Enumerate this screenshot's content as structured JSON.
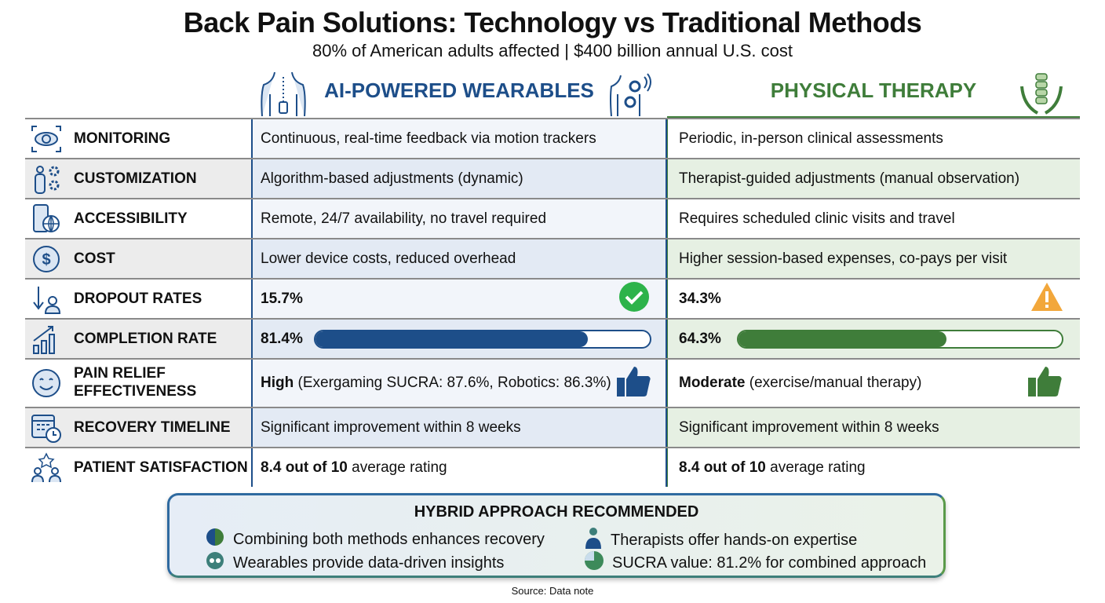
{
  "title": "Back Pain Solutions: Technology vs Traditional Methods",
  "subtitle": "80% of American adults affected | $400 billion annual U.S. cost",
  "columns": {
    "wearables": "AI-POWERED WEARABLES",
    "therapy": "PHYSICAL THERAPY"
  },
  "colors": {
    "wearables": "#1d4e89",
    "therapy": "#3f7d3a",
    "check": "#2db34a",
    "warning": "#f2a73b"
  },
  "rows": [
    {
      "label": "MONITORING",
      "icon": "eye-icon",
      "wearables": "Continuous, real-time feedback via motion trackers",
      "therapy": "Periodic, in-person clinical assessments"
    },
    {
      "label": "CUSTOMIZATION",
      "icon": "person-gears-icon",
      "wearables": "Algorithm-based adjustments (dynamic)",
      "therapy": "Therapist-guided adjustments (manual observation)"
    },
    {
      "label": "ACCESSIBILITY",
      "icon": "phone-globe-icon",
      "wearables": "Remote, 24/7 availability, no travel required",
      "therapy": "Requires scheduled clinic visits and travel"
    },
    {
      "label": "COST",
      "icon": "dollar-icon",
      "wearables": "Lower device costs, reduced overhead",
      "therapy": "Higher session-based expenses, co-pays per visit"
    },
    {
      "label": "DROPOUT RATES",
      "icon": "dropout-icon",
      "wearables": "15.7%",
      "therapy": "34.3%",
      "wearables_badge": "check-icon",
      "therapy_badge": "warning-icon"
    },
    {
      "label": "COMPLETION RATE",
      "icon": "growth-chart-icon",
      "wearables": "81.4%",
      "therapy": "64.3%",
      "wearables_progress": 81.4,
      "therapy_progress": 64.3
    },
    {
      "label": "PAIN RELIEF EFFECTIVENESS",
      "icon": "smile-icon",
      "wearables_bold": "High",
      "wearables": " (Exergaming SUCRA: 87.6%, Robotics: 86.3%)",
      "therapy_bold": "Moderate",
      "therapy": " (exercise/manual therapy)",
      "badge": "thumbs-up-icon"
    },
    {
      "label": "RECOVERY TIMELINE",
      "icon": "calendar-clock-icon",
      "wearables": "Significant improvement within 8 weeks",
      "therapy": "Significant improvement within 8 weeks"
    },
    {
      "label": "PATIENT SATISFACTION",
      "icon": "people-star-icon",
      "wearables_bold": "8.4 out of 10",
      "wearables": " average rating",
      "therapy_bold": "8.4 out of 10",
      "therapy": " average rating"
    }
  ],
  "hybrid": {
    "title": "HYBRID APPROACH RECOMMENDED",
    "items": [
      "Combining both methods enhances recovery",
      "Therapists offer hands-on expertise",
      "Wearables provide data-driven insights",
      "SUCRA value: 81.2% for combined approach"
    ]
  },
  "source": "Source: Data note"
}
